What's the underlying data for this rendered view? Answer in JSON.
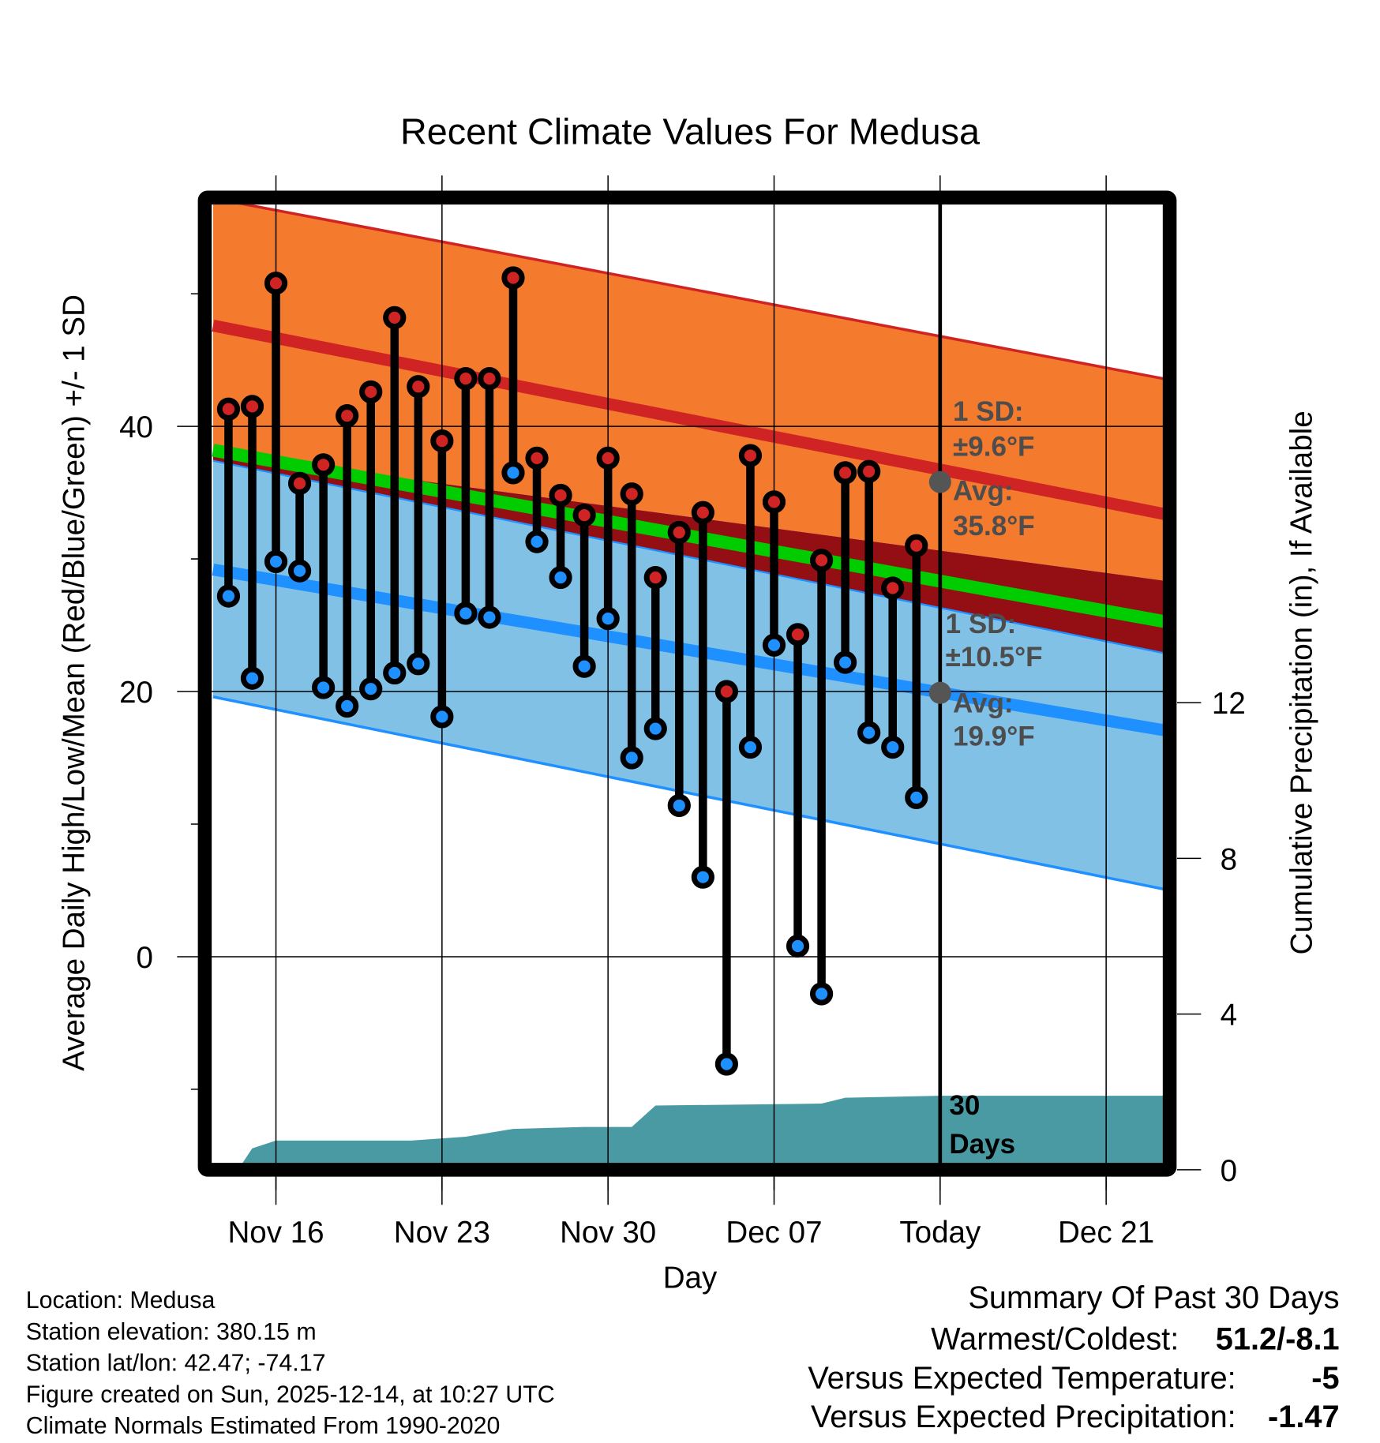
{
  "chart_data": {
    "type": "line",
    "title": "Recent Climate Values For Medusa",
    "xlabel": "Day",
    "ylabel": "Average Daily High/Low/Mean (Red/Blue/Green) +/- 1 SD",
    "y2label": "Cumulative Precipitation (in), If Available",
    "ylim": [
      -15.5,
      57
    ],
    "y2lim": [
      0,
      14.2
    ],
    "x_start": "Nov 13",
    "x_end": "Dec 23",
    "x_ticks": [
      {
        "day": 3,
        "label": "Nov 16"
      },
      {
        "day": 10,
        "label": "Nov 23"
      },
      {
        "day": 17,
        "label": "Nov 30"
      },
      {
        "day": 24,
        "label": "Dec 07"
      },
      {
        "day": 31,
        "label": "Today"
      },
      {
        "day": 38,
        "label": "Dec 21"
      }
    ],
    "y_ticks": [
      0,
      20,
      40
    ],
    "y_minor_ticks": [
      -10,
      10,
      30,
      50
    ],
    "y2_ticks": [
      0,
      4,
      8,
      12
    ],
    "grid": true,
    "today_day": 31,
    "normals": {
      "day_range": [
        0.35,
        40.7
      ],
      "high_avg": [
        47.6,
        33.3
      ],
      "high_upper": [
        57.2,
        43.5
      ],
      "high_lower": [
        38.0,
        28.3
      ],
      "low_avg": [
        29.2,
        17.0
      ],
      "low_upper": [
        37.4,
        22.8
      ],
      "low_lower": [
        19.6,
        5.0
      ],
      "mean": [
        38.2,
        25.2
      ]
    },
    "series": [
      {
        "name": "High",
        "color": "#d02424",
        "days": [
          1,
          2,
          3,
          4,
          5,
          6,
          7,
          8,
          9,
          10,
          11,
          12,
          13,
          14,
          15,
          16,
          17,
          18,
          19,
          20,
          21,
          22,
          23,
          24,
          25,
          26,
          27,
          28,
          29,
          30
        ],
        "values": [
          41.3,
          41.5,
          50.8,
          35.7,
          37.1,
          40.8,
          42.6,
          48.2,
          43.0,
          38.9,
          43.6,
          43.6,
          51.2,
          37.6,
          34.8,
          33.3,
          37.6,
          34.9,
          28.6,
          32.0,
          33.5,
          20.0,
          37.8,
          34.3,
          24.3,
          29.9,
          36.5,
          36.6,
          27.8,
          31.0
        ]
      },
      {
        "name": "Low",
        "color": "#1e90ff",
        "days": [
          1,
          2,
          3,
          4,
          5,
          6,
          7,
          8,
          9,
          10,
          11,
          12,
          13,
          14,
          15,
          16,
          17,
          18,
          19,
          20,
          21,
          22,
          23,
          24,
          25,
          26,
          27,
          28,
          29,
          30
        ],
        "values": [
          27.2,
          21.0,
          29.8,
          29.1,
          20.3,
          18.9,
          20.2,
          21.4,
          22.1,
          18.1,
          25.9,
          25.6,
          36.5,
          31.3,
          28.6,
          21.9,
          25.5,
          15.0,
          17.2,
          11.4,
          6.0,
          -8.1,
          15.8,
          23.5,
          0.8,
          -2.8,
          22.2,
          16.9,
          15.8,
          12.0
        ]
      }
    ],
    "precipitation": {
      "name": "Cumulative Precipitation",
      "color": "#4a9aa4",
      "days": [
        1.4,
        2,
        3,
        8.7,
        11,
        13,
        16,
        18,
        19,
        26,
        27,
        31,
        40.7
      ],
      "values": [
        0,
        0.55,
        0.75,
        0.75,
        0.85,
        1.05,
        1.1,
        1.1,
        1.65,
        1.7,
        1.85,
        1.9,
        1.9
      ]
    },
    "annotations": {
      "high_sd": [
        "1 SD:",
        "±9.6°F"
      ],
      "high_avg": [
        "Avg:",
        "35.8°F"
      ],
      "low_sd": [
        "1 SD:",
        "±10.5°F"
      ],
      "low_avg": [
        "Avg:",
        "19.9°F"
      ],
      "high_today_value": 35.8,
      "low_today_value": 19.9,
      "window": [
        "30",
        "Days"
      ]
    }
  },
  "info": {
    "lines": [
      "Location: Medusa",
      "Station elevation: 380.15 m",
      "Station lat/lon: 42.47; -74.17",
      "Figure created on Sun, 2025-12-14, at 10:27 UTC",
      "Climate Normals Estimated From 1990-2020"
    ]
  },
  "summary": {
    "title": "Summary Of Past 30 Days",
    "rows": [
      {
        "label": "Warmest/Coldest:",
        "value": "51.2/-8.1",
        "color": "#000000"
      },
      {
        "label": "Versus Expected Temperature:",
        "value": "-5",
        "color": "#1e90ff"
      },
      {
        "label": "Versus Expected Precipitation:",
        "value": "-1.47",
        "color": "#a0522d"
      }
    ]
  }
}
